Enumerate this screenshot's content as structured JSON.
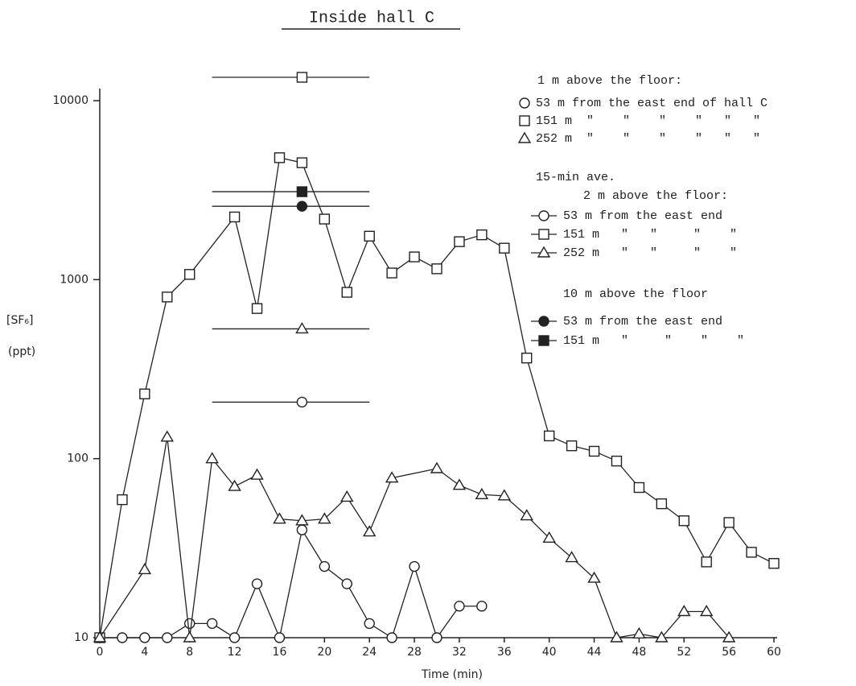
{
  "chart_data": {
    "type": "line",
    "title": "Inside hall C",
    "x_label": "Time (min)",
    "y_label": [
      "[SF₆]",
      "(ppt)"
    ],
    "log_y": true,
    "xlim": [
      0,
      60
    ],
    "ylim": [
      10,
      10000
    ],
    "xticks": [
      0,
      4,
      8,
      12,
      16,
      20,
      24,
      28,
      32,
      36,
      40,
      44,
      48,
      52,
      56,
      60
    ],
    "yticks": [
      10,
      100,
      1000,
      10000
    ],
    "color": "#222222",
    "legend_headings": [
      "1 m above the floor:",
      "15-min ave.",
      "2 m above the floor:",
      "10 m above the floor"
    ],
    "series": [
      {
        "name": "53 m from the east end of hall C",
        "marker": "circle",
        "x": [
          0,
          2,
          4,
          6,
          8,
          10,
          12,
          14,
          16,
          18,
          20,
          22,
          24,
          26,
          28,
          30,
          32,
          34
        ],
        "values": [
          10,
          10,
          10,
          10,
          12,
          12,
          10,
          20,
          10,
          40,
          25,
          20,
          12,
          10,
          25,
          10,
          15,
          15
        ]
      },
      {
        "name": "151 m  \"    \"    \"    \"   \"   \"",
        "marker": "square",
        "x": [
          0,
          2,
          4,
          6,
          8,
          12,
          14,
          16,
          18,
          20,
          22,
          24,
          26,
          28,
          30,
          32,
          34,
          36,
          38,
          40,
          42,
          44,
          46,
          48,
          50,
          52,
          54,
          56,
          58,
          60
        ],
        "values": [
          10,
          59,
          230,
          800,
          1070,
          2240,
          690,
          4800,
          4500,
          2180,
          850,
          1750,
          1090,
          1340,
          1150,
          1630,
          1780,
          1500,
          365,
          134,
          118,
          110,
          97,
          69,
          56,
          45,
          26.5,
          44,
          30,
          26
        ]
      },
      {
        "name": "252 m  \"    \"    \"    \"   \"   \"",
        "marker": "triangle",
        "x": [
          0,
          4,
          6,
          8,
          10,
          12,
          14,
          16,
          18,
          20,
          22,
          24,
          26,
          30,
          32,
          34,
          36,
          38,
          40,
          42,
          44,
          46,
          48,
          50,
          52,
          54,
          56
        ],
        "values": [
          10,
          24,
          132,
          10,
          100,
          70,
          81,
          46,
          45,
          46,
          61,
          39,
          78,
          88,
          71,
          63,
          62,
          48,
          36,
          28,
          21.5,
          10,
          10.5,
          10,
          14,
          14,
          10
        ]
      }
    ],
    "averages": [
      {
        "name": "53 m from the east end",
        "marker": "circle",
        "filled": false,
        "value": 207,
        "x_range": [
          10,
          24
        ],
        "marker_x": 18
      },
      {
        "name": "151 m   \"   \"     \"    \"",
        "marker": "square",
        "filled": false,
        "value": 13500,
        "x_range": [
          10,
          24
        ],
        "marker_x": 18
      },
      {
        "name": "252 m   \"   \"     \"    \"",
        "marker": "triangle",
        "filled": false,
        "value": 531,
        "x_range": [
          10,
          24
        ],
        "marker_x": 18
      },
      {
        "name": "53 m from the east end",
        "marker": "circle",
        "filled": true,
        "value": 2570,
        "x_range": [
          10,
          24
        ],
        "marker_x": 18
      },
      {
        "name": "151 m   \"     \"    \"    \"",
        "marker": "square",
        "filled": true,
        "value": 3100,
        "x_range": [
          10,
          24
        ],
        "marker_x": 18
      }
    ]
  }
}
